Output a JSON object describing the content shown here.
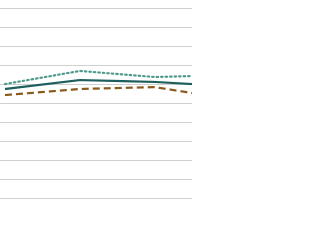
{
  "chart_data": {
    "type": "line",
    "x": [
      0,
      4,
      8,
      10
    ],
    "xlim": [
      0,
      10
    ],
    "ylim": [
      0,
      100
    ],
    "yticks": [
      0,
      10,
      20,
      30,
      40,
      50,
      60,
      70,
      80,
      90,
      100
    ],
    "grid": true,
    "series": [
      {
        "color": "#4f9a8c",
        "dash": "dotted",
        "values": [
          60.5,
          67.4,
          64.2,
          64.7
        ]
      },
      {
        "color": "#1e5e5e",
        "dash": "solid",
        "values": [
          57.9,
          62.6,
          61.6,
          60.5
        ]
      },
      {
        "color": "#8a5a1c",
        "dash": "dashed",
        "values": [
          54.7,
          57.9,
          58.9,
          55.8
        ]
      }
    ]
  }
}
